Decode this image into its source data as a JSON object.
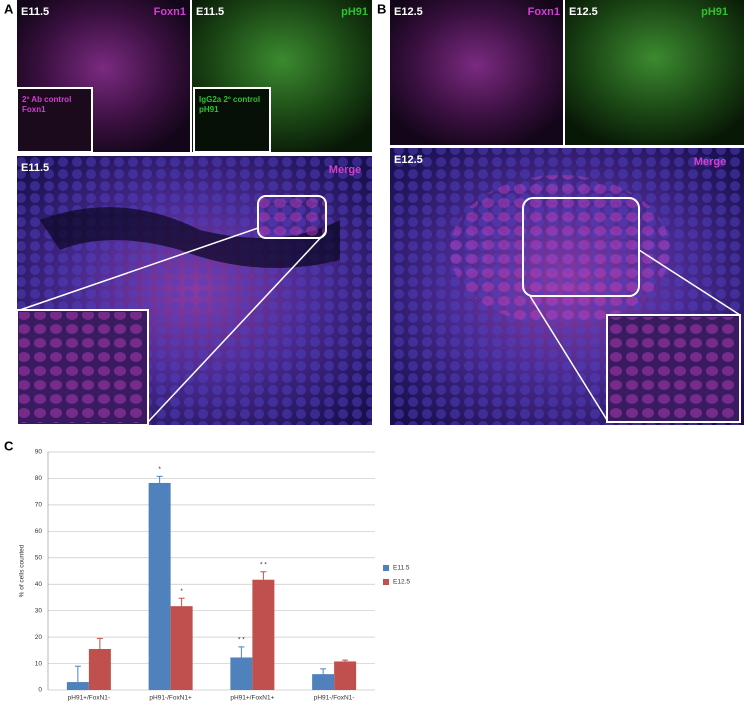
{
  "panel_a": {
    "label": "A",
    "foxn1_image": {
      "stage": "E11.5",
      "stain": "Foxn1",
      "inset": [
        "2º Ab control",
        "Foxn1"
      ]
    },
    "ph91_image": {
      "stage": "E11.5",
      "stain": "pH91",
      "inset": [
        "IgG2a 2º control",
        "pH91"
      ]
    },
    "merge_image": {
      "stage": "E11.5",
      "stain": "Merge"
    }
  },
  "panel_b": {
    "label": "B",
    "foxn1_image": {
      "stage": "E12.5",
      "stain": "Foxn1"
    },
    "ph91_image": {
      "stage": "E12.5",
      "stain": "pH91"
    },
    "merge_image": {
      "stage": "E12.5",
      "stain": "Merge"
    }
  },
  "panel_c": {
    "label": "C"
  },
  "chart_data": {
    "type": "bar",
    "ylabel": "% of cells counted",
    "categories": [
      "pH91+/FoxN1-",
      "pH91-/FoxN1+",
      "pH91+/FoxN1+",
      "pH91-/FoxN1-"
    ],
    "series": [
      {
        "name": "E11.5",
        "color": "#4f81bd",
        "values": [
          3,
          78.3,
          12.3,
          6
        ],
        "errors": [
          6,
          2.5,
          4,
          2
        ],
        "significance": [
          null,
          "*",
          "* *",
          null
        ]
      },
      {
        "name": "E12.5",
        "color": "#c0504d",
        "values": [
          15.5,
          31.7,
          41.7,
          10.8
        ],
        "errors": [
          4,
          3,
          3,
          0.5
        ],
        "significance": [
          null,
          "*",
          "* *",
          null
        ]
      }
    ],
    "ylim": [
      0,
      90
    ],
    "yticks": [
      0,
      10,
      20,
      30,
      40,
      50,
      60,
      70,
      80,
      90
    ],
    "grid": true,
    "legend": "right"
  }
}
